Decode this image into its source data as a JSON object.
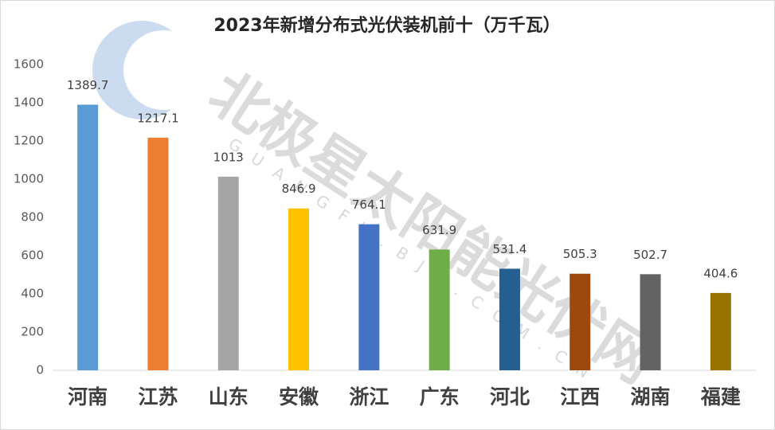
{
  "chart_data": {
    "type": "bar",
    "title": "2023年新增分布式光伏装机前十（万千瓦）",
    "categories": [
      "河南",
      "江苏",
      "山东",
      "安徽",
      "浙江",
      "广东",
      "河北",
      "江西",
      "湖南",
      "福建"
    ],
    "values": [
      1389.7,
      1217.1,
      1013,
      846.9,
      764.1,
      631.9,
      531.4,
      505.3,
      502.7,
      404.6
    ],
    "colors": [
      "#5b9bd5",
      "#ed7d31",
      "#a5a5a5",
      "#ffc000",
      "#4472c4",
      "#70ad47",
      "#255e91",
      "#9e480e",
      "#636363",
      "#997300"
    ],
    "ylim": [
      0,
      1600
    ],
    "yticks": [
      0,
      200,
      400,
      600,
      800,
      1000,
      1200,
      1400,
      1600
    ],
    "grid": false,
    "watermark": "北极星太阳能光伏网",
    "watermark_url": "GUANGFU.BJX.COM.CN"
  }
}
